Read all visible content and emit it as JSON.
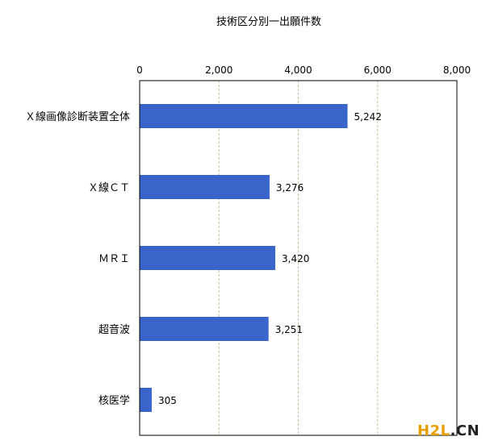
{
  "chart_data": {
    "type": "bar",
    "orientation": "horizontal",
    "title": "技術区分別一出願件数",
    "xlabel": "",
    "ylabel": "",
    "categories": [
      "Ｘ線画像診断装置全体",
      "Ｘ線ＣＴ",
      "ＭＲＩ",
      "超音波",
      "核医学"
    ],
    "values": [
      5242,
      3276,
      3420,
      3251,
      305
    ],
    "value_labels": [
      "5,242",
      "3,276",
      "3,420",
      "3,251",
      "305"
    ],
    "xlim": [
      0,
      8000
    ],
    "x_ticks": [
      0,
      2000,
      4000,
      6000,
      8000
    ],
    "x_tick_labels": [
      "0",
      "2,000",
      "4,000",
      "6,000",
      "8,000"
    ],
    "x_axis_position": "top",
    "grid": "vertical dashed",
    "bar_color": "#3a66cc",
    "grid_color": "#b8c8a0"
  },
  "watermark": {
    "text_main": "H2L",
    "text_dot": ".",
    "text_tld": "CN",
    "color_main": "#e8a000",
    "color_tld": "#222222"
  }
}
